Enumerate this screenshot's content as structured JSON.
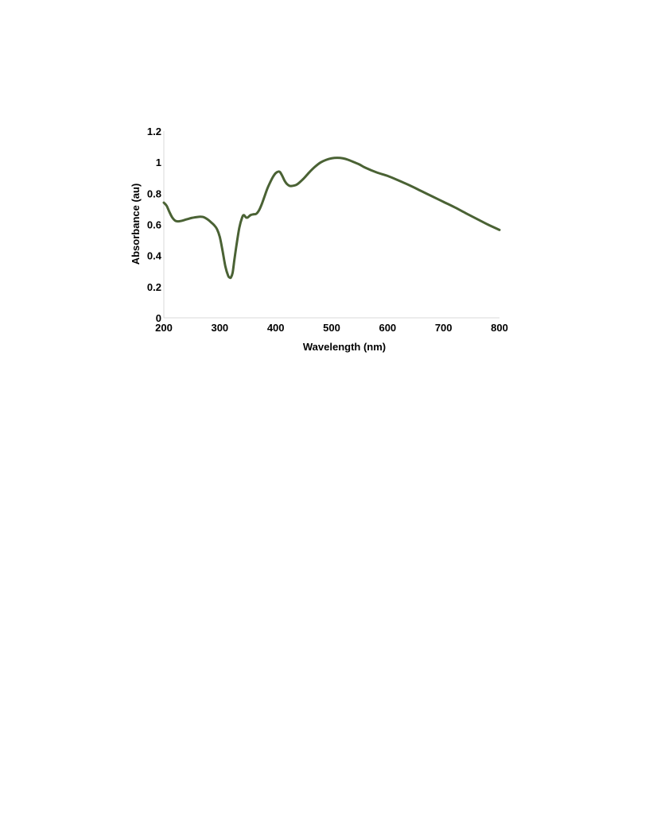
{
  "chart_data": {
    "type": "line",
    "title": "",
    "xlabel": "Wavelength (nm)",
    "ylabel": "Absorbance (au)",
    "xlim": [
      200,
      800
    ],
    "ylim": [
      0,
      1.2
    ],
    "x_ticks": [
      "200",
      "300",
      "400",
      "500",
      "600",
      "700",
      "800"
    ],
    "y_ticks": [
      "0",
      "0.2",
      "0.4",
      "0.6",
      "0.8",
      "1",
      "1.2"
    ],
    "grid": false,
    "legend": "none",
    "series": [
      {
        "color": "#4a6234",
        "x": [
          200,
          205,
          210,
          215,
          220,
          225,
          230,
          240,
          250,
          260,
          265,
          270,
          275,
          280,
          285,
          290,
          295,
          300,
          305,
          310,
          315,
          318,
          320,
          323,
          326,
          330,
          335,
          340,
          343,
          347,
          350,
          355,
          360,
          365,
          370,
          375,
          380,
          385,
          390,
          395,
          400,
          405,
          408,
          412,
          416,
          420,
          425,
          430,
          435,
          440,
          450,
          460,
          470,
          480,
          490,
          500,
          510,
          520,
          530,
          540,
          550,
          560,
          580,
          600,
          620,
          640,
          660,
          680,
          700,
          720,
          740,
          760,
          780,
          800
        ],
        "y": [
          0.74,
          0.72,
          0.68,
          0.645,
          0.625,
          0.62,
          0.622,
          0.632,
          0.642,
          0.648,
          0.65,
          0.648,
          0.64,
          0.628,
          0.612,
          0.595,
          0.57,
          0.52,
          0.43,
          0.33,
          0.27,
          0.258,
          0.26,
          0.29,
          0.37,
          0.47,
          0.58,
          0.645,
          0.66,
          0.645,
          0.645,
          0.66,
          0.665,
          0.668,
          0.69,
          0.73,
          0.78,
          0.83,
          0.87,
          0.905,
          0.93,
          0.94,
          0.935,
          0.91,
          0.88,
          0.86,
          0.848,
          0.848,
          0.852,
          0.862,
          0.895,
          0.935,
          0.97,
          0.998,
          1.015,
          1.025,
          1.028,
          1.025,
          1.015,
          1.0,
          0.985,
          0.965,
          0.935,
          0.912,
          0.882,
          0.85,
          0.815,
          0.78,
          0.745,
          0.71,
          0.672,
          0.635,
          0.598,
          0.565
        ]
      }
    ]
  }
}
